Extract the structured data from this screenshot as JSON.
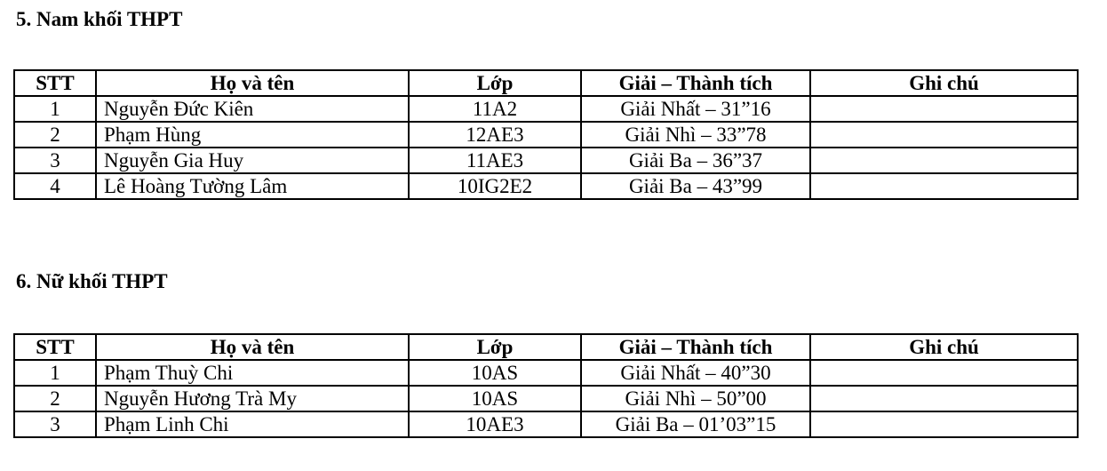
{
  "sections": [
    {
      "heading": "5. Nam khối THPT",
      "headers": [
        "STT",
        "Họ và tên",
        "Lớp",
        "Giải – Thành tích",
        "Ghi chú"
      ],
      "rows": [
        [
          "1",
          "Nguyễn Đức Kiên",
          "11A2",
          "Giải Nhất – 31”16",
          ""
        ],
        [
          "2",
          "Phạm Hùng",
          "12AE3",
          "Giải Nhì – 33”78",
          ""
        ],
        [
          "3",
          "Nguyễn Gia Huy",
          "11AE3",
          "Giải Ba – 36”37",
          ""
        ],
        [
          "4",
          "Lê Hoàng Tường Lâm",
          "10IG2E2",
          "Giải Ba – 43”99",
          ""
        ]
      ]
    },
    {
      "heading": "6. Nữ khối THPT",
      "headers": [
        "STT",
        "Họ và tên",
        "Lớp",
        "Giải – Thành tích",
        "Ghi chú"
      ],
      "rows": [
        [
          "1",
          "Phạm Thuỳ Chi",
          "10AS",
          "Giải Nhất – 40”30",
          ""
        ],
        [
          "2",
          "Nguyễn Hương Trà My",
          "10AS",
          "Giải Nhì – 50”00",
          ""
        ],
        [
          "3",
          "Phạm Linh Chi",
          "10AE3",
          "Giải Ba – 01’03”15",
          ""
        ]
      ]
    }
  ]
}
